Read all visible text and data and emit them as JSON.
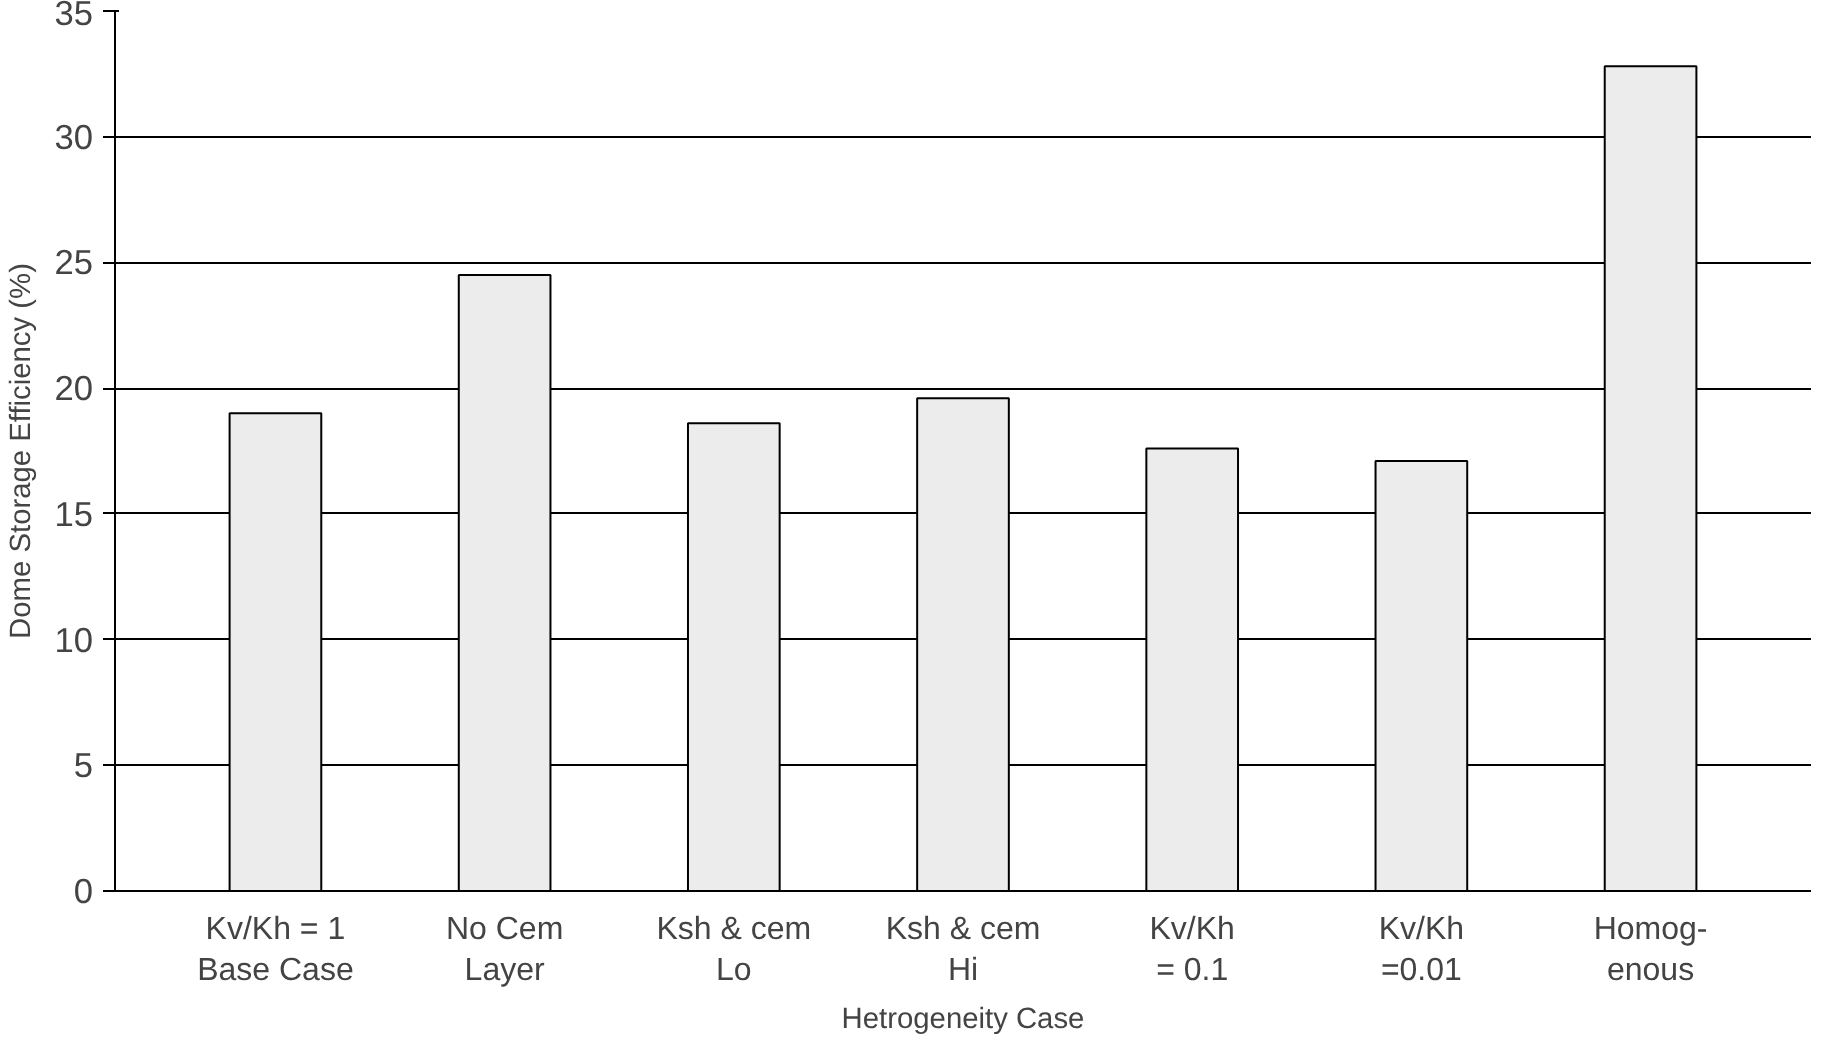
{
  "chart_data": {
    "type": "bar",
    "xlabel": "Hetrogeneity Case",
    "ylabel": "Dome Storage Efficiency (%)",
    "categories": [
      "Kv/Kh = 1\nBase Case",
      "No Cem\nLayer",
      "Ksh & cem\nLo",
      "Ksh & cem\nHi",
      "Kv/Kh\n= 0.1",
      "Kv/Kh\n=0.01",
      "Homog-\nenous"
    ],
    "values": [
      19.0,
      24.5,
      18.6,
      19.6,
      17.6,
      17.1,
      32.8
    ],
    "color": "#ececec",
    "ylim": [
      0,
      35
    ],
    "yticks": [
      0,
      5,
      10,
      15,
      20,
      25,
      30,
      35
    ],
    "grid": "y"
  }
}
